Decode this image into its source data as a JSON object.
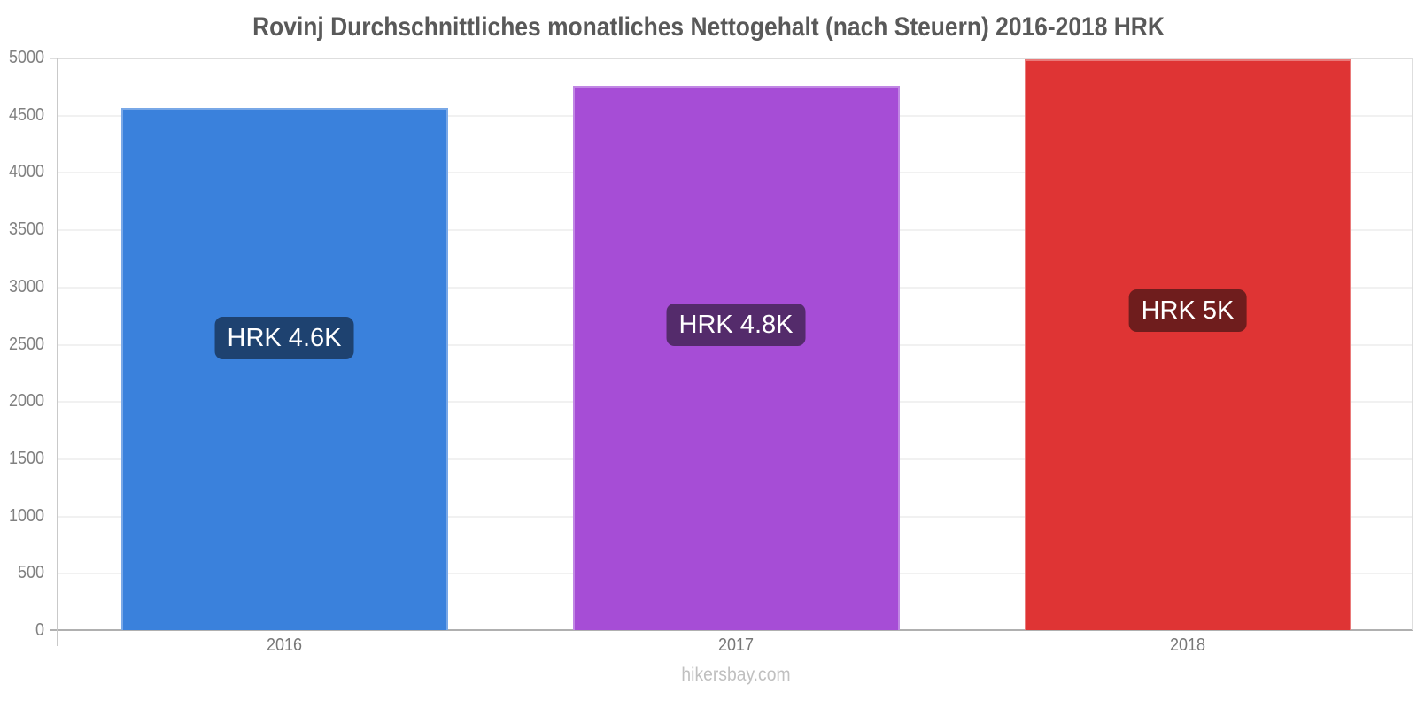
{
  "chart_data": {
    "type": "bar",
    "title": "Rovinj Durchschnittliches monatliches Nettogehalt (nach Steuern) 2016-2018 HRK",
    "categories": [
      "2016",
      "2017",
      "2018"
    ],
    "values": [
      4560,
      4755,
      4985
    ],
    "value_labels": [
      "HRK 4.6K",
      "HRK 4.8K",
      "HRK 5K"
    ],
    "xlabel": "",
    "ylabel": "",
    "ylim": [
      0,
      5000
    ],
    "yticks": [
      0,
      500,
      1000,
      1500,
      2000,
      2500,
      3000,
      3500,
      4000,
      4500,
      5000
    ],
    "grid": true,
    "legend": false
  },
  "footer": {
    "watermark": "hikersbay.com"
  },
  "colors": {
    "bars": [
      "#3A81DC",
      "#A64DD6",
      "#DF3434"
    ],
    "bar_borders": [
      "#79A8E7",
      "#C187E4",
      "#EA7A7A"
    ],
    "label_backgrounds": [
      "#1E4270",
      "#542B6B",
      "#6F1D1D"
    ],
    "label_text": "#FFFFFF",
    "title_text": "#595959",
    "axis_line": "#C9C9C9",
    "baseline": "#B0B0B0",
    "grid_top": "#DEDEDE",
    "grid_minor": "#F1F1F1",
    "y_tick_text": "#808080",
    "x_tick_text": "#777777",
    "watermark_text": "#C0C0C0"
  }
}
